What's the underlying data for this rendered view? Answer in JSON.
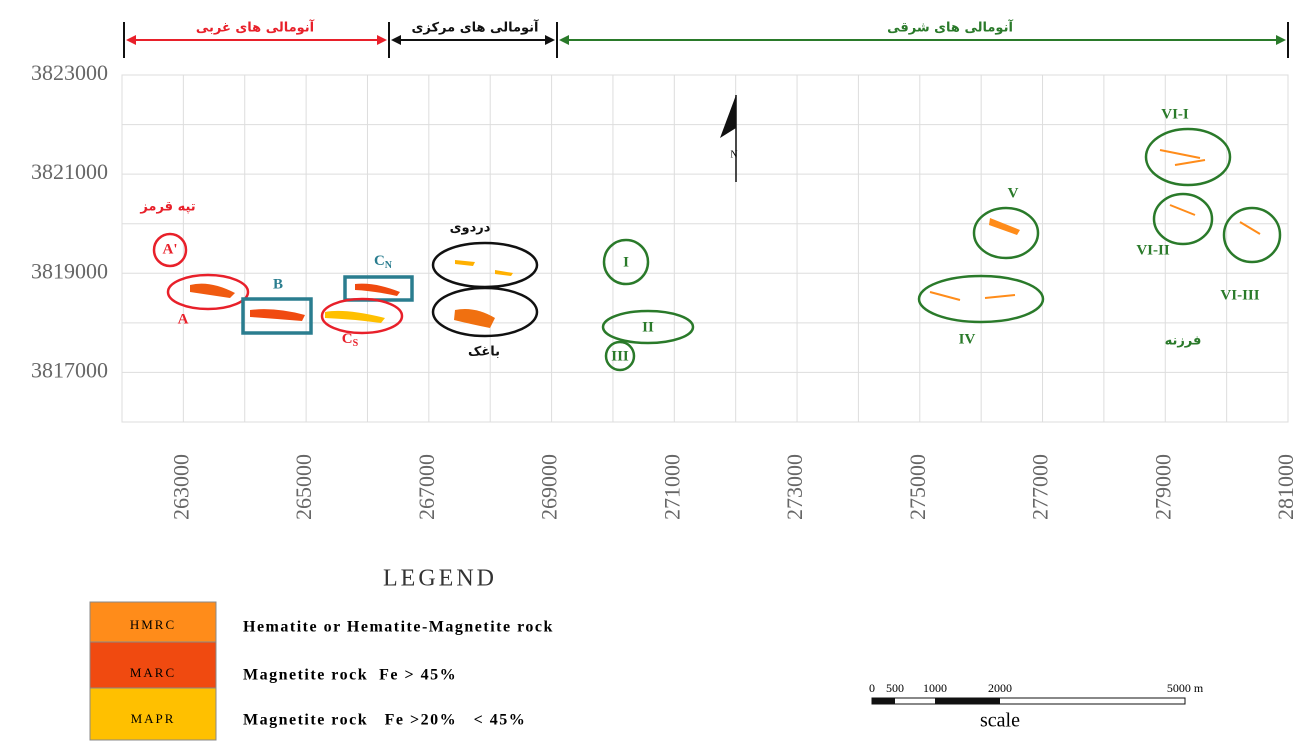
{
  "map": {
    "xlim": [
      262000,
      281000
    ],
    "ylim": [
      3816000,
      3823000
    ],
    "xticks": [
      263000,
      265000,
      267000,
      269000,
      271000,
      273000,
      275000,
      277000,
      279000,
      281000
    ],
    "yticks": [
      3817000,
      3819000,
      3821000,
      3823000
    ],
    "gridlines_x": [
      263000,
      264000,
      265000,
      266000,
      267000,
      268000,
      269000,
      270000,
      271000,
      272000,
      273000,
      274000,
      275000,
      276000,
      277000,
      278000,
      279000,
      280000
    ],
    "gridlines_y": [
      3817000,
      3818000,
      3819000,
      3820000,
      3821000,
      3822000
    ],
    "zones": {
      "west": "آنومالی های غربی",
      "central": "آنومالی های مرکزی",
      "east": "آنومالی های شرقی"
    },
    "places": {
      "tappeh_ghermez": "تپه قرمز",
      "dardavi": "دردوی",
      "baghak": "باغک",
      "farzaneh": "فرزنه"
    },
    "anomalies": {
      "a_prime": "A'",
      "a": "A",
      "b": "B",
      "c_n": {
        "main": "C",
        "sub": "N"
      },
      "c_s": {
        "main": "C",
        "sub": "S"
      },
      "i": "I",
      "ii": "II",
      "iii": "III",
      "iv": "IV",
      "v": "V",
      "vi_i": "VI-I",
      "vi_ii": "VI-II",
      "vi_iii": "VI-III"
    },
    "north": "N"
  },
  "legend": {
    "title": "LEGEND",
    "items": [
      {
        "code": "HMRC",
        "label": "Hematite or Hematite-Magnetite rock"
      },
      {
        "code": "MARC",
        "label": "Magnetite rock  Fe > 45%"
      },
      {
        "code": "MAPR",
        "label": "Magnetite rock   Fe >20%   < 45%"
      }
    ]
  },
  "scale": {
    "ticks": [
      "0",
      "500",
      "1000",
      "2000",
      "5000 m"
    ],
    "label": "scale"
  }
}
